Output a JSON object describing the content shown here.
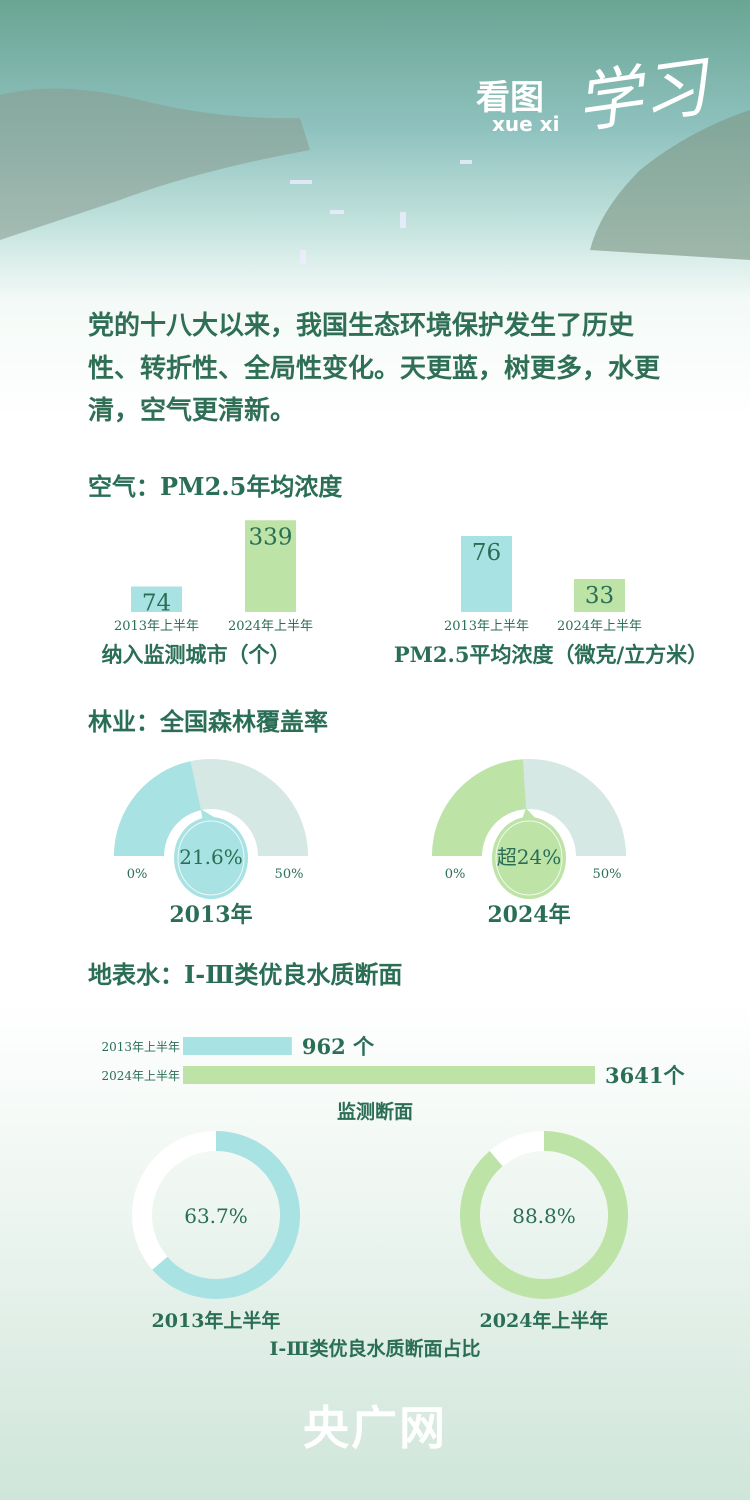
{
  "header": {
    "logo_text": "看图",
    "logo_sub": "xue xi",
    "logo_script": "学习"
  },
  "intro": "党的十八大以来，我国生态环境保护发生了历史性、转折性、全局性变化。天更蓝，树更多，水更清，空气更清新。",
  "colors": {
    "y2013": "#a8e2e2",
    "y2024": "#bde3a7",
    "track": "#d5e8e3",
    "text": "#2a6e55"
  },
  "sections": {
    "air": "空气：PM2.5年均浓度",
    "forest": "林业：全国森林覆盖率",
    "water": "地表水：Ⅰ-Ⅲ类优良水质断面"
  },
  "chart_data": [
    {
      "type": "bar",
      "categories": [
        "2013年上半年",
        "2024年上半年"
      ],
      "values": [
        74,
        339
      ],
      "value_labels": [
        "74",
        "339"
      ],
      "xlabel": "纳入监测城市（个）"
    },
    {
      "type": "bar",
      "categories": [
        "2013年上半年",
        "2024年上半年"
      ],
      "values": [
        76,
        33
      ],
      "value_labels": [
        "76",
        "33"
      ],
      "xlabel": "PM2.5平均浓度（微克/立方米）"
    },
    {
      "type": "gauge",
      "range": [
        0,
        50
      ],
      "min_label": "0%",
      "max_label": "50%",
      "value": 21.6,
      "value_label": "21.6%",
      "xlabel": "2013年"
    },
    {
      "type": "gauge",
      "range": [
        0,
        50
      ],
      "min_label": "0%",
      "max_label": "50%",
      "value": 24,
      "value_label": "超24%",
      "xlabel": "2024年"
    },
    {
      "type": "bar",
      "orientation": "horizontal",
      "categories": [
        "2013年上半年",
        "2024年上半年"
      ],
      "values": [
        962,
        3641
      ],
      "value_labels": [
        "962 个",
        "3641个"
      ],
      "xlabel": "监测断面"
    },
    {
      "type": "pie",
      "donut": true,
      "values": [
        63.7,
        36.3
      ],
      "value_label": "63.7%",
      "xlabel": "2013年上半年"
    },
    {
      "type": "pie",
      "donut": true,
      "values": [
        88.8,
        11.2
      ],
      "value_label": "88.8%",
      "xlabel": "2024年上半年"
    }
  ],
  "donut_caption": "Ⅰ-Ⅲ类优良水质断面占比",
  "footer": {
    "logo": "央广网"
  }
}
